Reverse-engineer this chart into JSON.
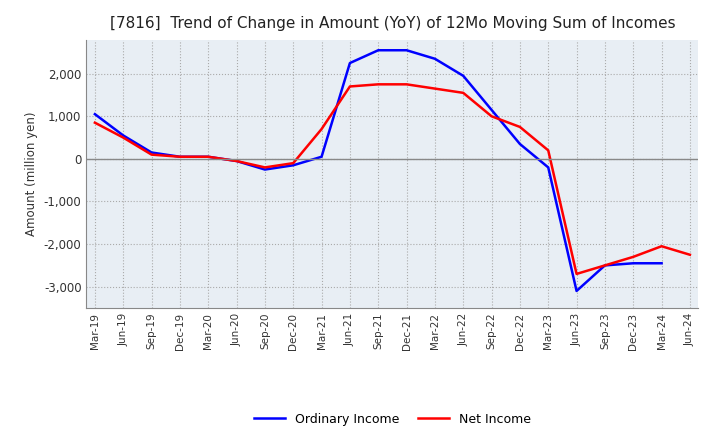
{
  "title": "[7816]  Trend of Change in Amount (YoY) of 12Mo Moving Sum of Incomes",
  "ylabel": "Amount (million yen)",
  "ylim": [
    -3500,
    2800
  ],
  "yticks": [
    -3000,
    -2000,
    -1000,
    0,
    1000,
    2000
  ],
  "x_labels": [
    "Mar-19",
    "Jun-19",
    "Sep-19",
    "Dec-19",
    "Mar-20",
    "Jun-20",
    "Sep-20",
    "Dec-20",
    "Mar-21",
    "Jun-21",
    "Sep-21",
    "Dec-21",
    "Mar-22",
    "Jun-22",
    "Sep-22",
    "Dec-22",
    "Mar-23",
    "Jun-23",
    "Sep-23",
    "Dec-23",
    "Mar-24",
    "Jun-24"
  ],
  "ordinary_income": [
    1050,
    550,
    150,
    50,
    50,
    -50,
    -250,
    -150,
    50,
    2250,
    2550,
    2550,
    2350,
    1950,
    1150,
    350,
    -200,
    -3100,
    -2500,
    -2450,
    -2450,
    null
  ],
  "net_income": [
    850,
    500,
    100,
    50,
    50,
    -50,
    -200,
    -100,
    700,
    1700,
    1750,
    1750,
    1650,
    1550,
    1000,
    750,
    200,
    -2700,
    -2500,
    -2300,
    -2050,
    -2250
  ],
  "ordinary_color": "#0000FF",
  "net_color": "#FF0000",
  "grid_color": "#AAAAAA",
  "background_color": "#FFFFFF",
  "plot_bg_color": "#E8EEF4",
  "title_fontsize": 11,
  "legend_labels": [
    "Ordinary Income",
    "Net Income"
  ]
}
